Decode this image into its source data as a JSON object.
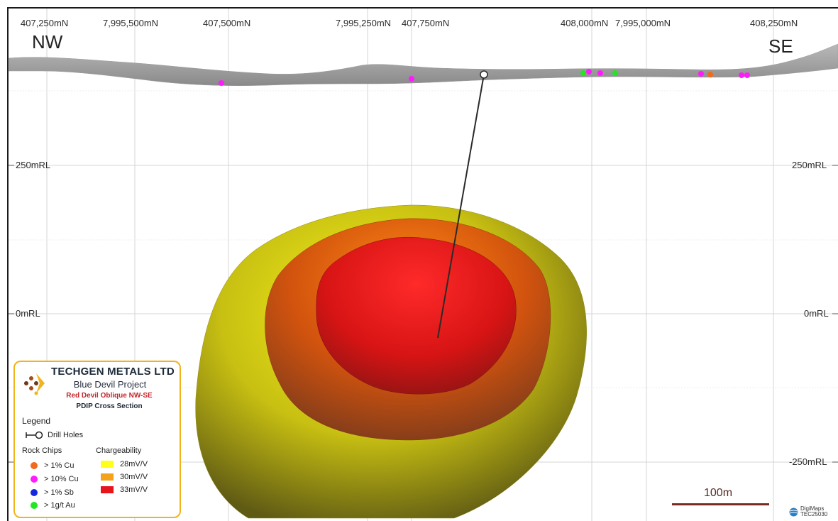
{
  "header": {
    "tick_labels": [
      "407,250mN",
      "7,995,500mN",
      "407,500mN",
      "7,995,250mN",
      "407,750mN",
      "408,000mN",
      "7,995,000mN",
      "408,250mN"
    ],
    "directions": {
      "left": "NW",
      "right": "SE"
    }
  },
  "elevation_labels": {
    "rl_250": "250mRL",
    "rl_0": "0mRL",
    "rl_minus_250": "-250mRL"
  },
  "legend": {
    "company": "TECHGEN METALS LTD",
    "project": "Blue Devil Project",
    "section_name": "Red Devil Oblique NW-SE",
    "section_type": "PDIP Cross Section",
    "title": "Legend",
    "drill_holes": "Drill Holes",
    "rock_chips_title": "Rock Chips",
    "chargeability_title": "Chargeability",
    "rock_chips": [
      {
        "label": "> 1% Cu",
        "color": "#f26a1b"
      },
      {
        "label": "> 10% Cu",
        "color": "#ff1aff"
      },
      {
        "label": "> 1% Sb",
        "color": "#1428e0"
      },
      {
        "label": "> 1g/t Au",
        "color": "#22e622"
      }
    ],
    "chargeability": [
      {
        "label": "28mV/V",
        "color": "#ffff1a"
      },
      {
        "label": "30mV/V",
        "color": "#f4a21c"
      },
      {
        "label": "33mV/V",
        "color": "#e8141c"
      }
    ]
  },
  "scale": {
    "label": "100m",
    "color": "#7a2a1f"
  },
  "footer": {
    "brand": "DigiMaps",
    "code": "TEC25030"
  }
}
